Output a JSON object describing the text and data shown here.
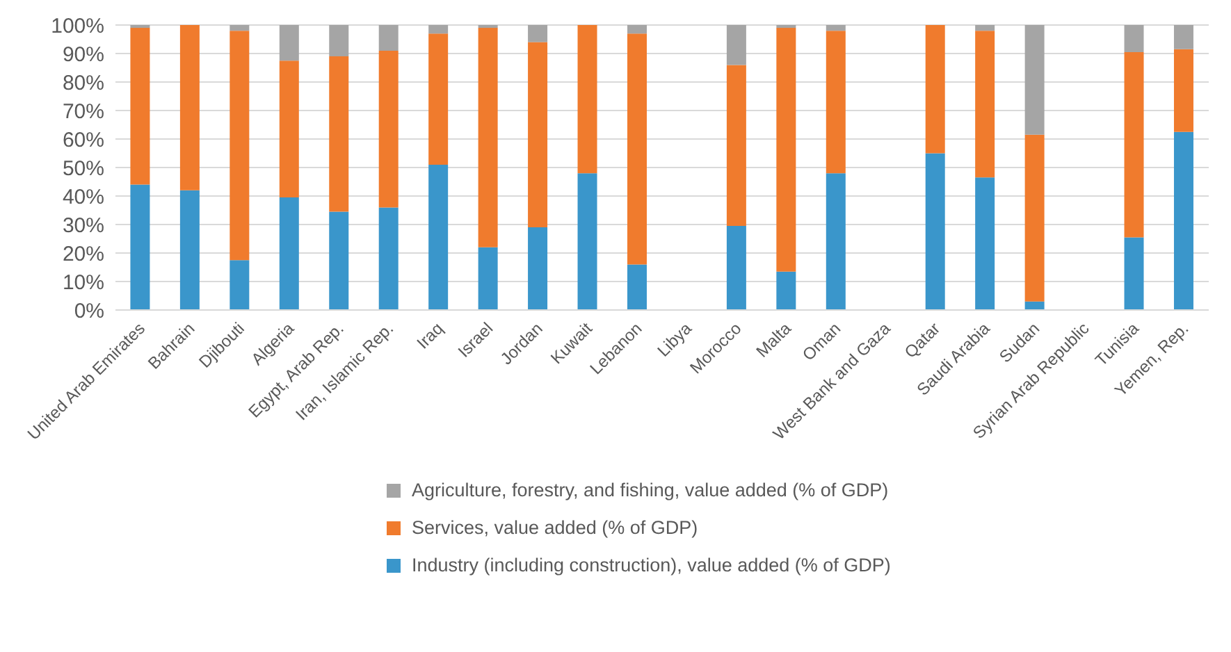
{
  "chart_data": {
    "type": "bar",
    "stacked": true,
    "categories": [
      "United Arab Emirates",
      "Bahrain",
      "Djibouti",
      "Algeria",
      "Egypt, Arab Rep.",
      "Iran, Islamic Rep.",
      "Iraq",
      "Israel",
      "Jordan",
      "Kuwait",
      "Lebanon",
      "Libya",
      "Morocco",
      "Malta",
      "Oman",
      "West Bank and Gaza",
      "Qatar",
      "Saudi Arabia",
      "Sudan",
      "Syrian Arab Republic",
      "Tunisia",
      "Yemen, Rep."
    ],
    "series": [
      {
        "name": "Industry (including construction), value added (% of GDP)",
        "color": "#3a96cb",
        "values": [
          44,
          42,
          17.5,
          39.5,
          34.5,
          36,
          51,
          22,
          29,
          48,
          16,
          null,
          29.5,
          13.5,
          48,
          null,
          55,
          46.5,
          3,
          null,
          25.5,
          62.5
        ]
      },
      {
        "name": "Services, value added (% of GDP)",
        "color": "#f07b2d",
        "values": [
          55,
          58,
          80.5,
          48,
          54.5,
          55,
          46,
          77,
          65,
          52,
          81,
          null,
          56.5,
          85.5,
          50,
          null,
          45,
          51.5,
          58.5,
          null,
          65,
          29
        ]
      },
      {
        "name": "Agriculture, forestry, and fishing, value added (% of GDP)",
        "color": "#a5a5a5",
        "values": [
          1,
          null,
          2,
          12.5,
          11,
          9,
          3,
          1,
          6,
          null,
          3,
          null,
          14,
          1,
          2,
          null,
          null,
          2,
          38.5,
          null,
          9.5,
          8.5
        ]
      }
    ],
    "ylim": [
      0,
      100
    ],
    "yticks": [
      {
        "value": 0,
        "label": "0%"
      },
      {
        "value": 10,
        "label": "10%"
      },
      {
        "value": 20,
        "label": "20%"
      },
      {
        "value": 30,
        "label": "30%"
      },
      {
        "value": 40,
        "label": "40%"
      },
      {
        "value": 50,
        "label": "50%"
      },
      {
        "value": 60,
        "label": "60%"
      },
      {
        "value": 70,
        "label": "70%"
      },
      {
        "value": 80,
        "label": "80%"
      },
      {
        "value": 90,
        "label": "90%"
      },
      {
        "value": 100,
        "label": "100%"
      }
    ],
    "grid": "y",
    "legend": "bottom"
  }
}
